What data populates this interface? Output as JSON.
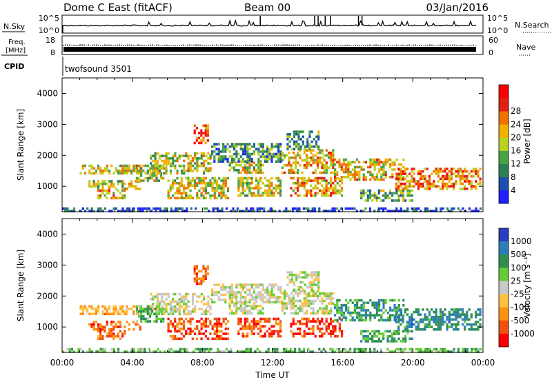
{
  "header": {
    "station": "Dome C East (fitACF)",
    "beam": "Beam 00",
    "date": "03/Jan/2016"
  },
  "strip_panels": {
    "nsky": {
      "label": "N.Sky",
      "ytick_top": "10^5",
      "ytick_bottom": "10^0",
      "right_label": "N.Search",
      "right_ytick_top": "10^5",
      "right_ytick_bottom": "10^0"
    },
    "freq": {
      "label_line1": "Freq.",
      "label_line2": "[MHz]",
      "ytick_top": "18",
      "ytick_bottom": "8",
      "right_label": "Nave",
      "right_ytick_top": "60",
      "right_ytick_bottom": "0"
    },
    "cpid": {
      "label": "CPID",
      "value": "twofsound 3501"
    }
  },
  "chart_data": [
    {
      "type": "heatmap",
      "name": "power",
      "ylabel": "Slant Range [km]",
      "xlabel": "",
      "ylim": [
        180,
        4500
      ],
      "xlim_hours": [
        0,
        24
      ],
      "yticks": [
        "1000",
        "2000",
        "3000",
        "4000"
      ],
      "colorbar": {
        "label": "Power [dB]",
        "ticks": [
          "4",
          "8",
          "12",
          "16",
          "20",
          "24",
          "28"
        ],
        "colors": [
          "#1f1fff",
          "#1a4fb0",
          "#2e7f55",
          "#4aa344",
          "#b8d020",
          "#f0b000",
          "#f07000",
          "#e02010",
          "#ff0000"
        ]
      },
      "regions": [
        {
          "t": [
            1.0,
            4.5
          ],
          "r": [
            1400,
            1700
          ],
          "level": 0.55
        },
        {
          "t": [
            1.5,
            4.5
          ],
          "r": [
            900,
            1200
          ],
          "level": 0.5
        },
        {
          "t": [
            2.0,
            3.6
          ],
          "r": [
            600,
            900
          ],
          "level": 0.6
        },
        {
          "t": [
            4.2,
            5.8
          ],
          "r": [
            1200,
            1700
          ],
          "level": 0.5
        },
        {
          "t": [
            5.0,
            8.5
          ],
          "r": [
            1400,
            2100
          ],
          "level": 0.5
        },
        {
          "t": [
            6.0,
            9.5
          ],
          "r": [
            600,
            1300
          ],
          "level": 0.55
        },
        {
          "t": [
            7.5,
            8.3
          ],
          "r": [
            2400,
            3000
          ],
          "level": 0.75
        },
        {
          "t": [
            8.5,
            12.5
          ],
          "r": [
            1800,
            2400
          ],
          "level": 0.3
        },
        {
          "t": [
            9.5,
            11.5
          ],
          "r": [
            1400,
            1800
          ],
          "level": 0.5
        },
        {
          "t": [
            10.0,
            12.5
          ],
          "r": [
            700,
            1300
          ],
          "level": 0.55
        },
        {
          "t": [
            12.5,
            15.5
          ],
          "r": [
            1400,
            2200
          ],
          "level": 0.6
        },
        {
          "t": [
            13.0,
            16.0
          ],
          "r": [
            700,
            1300
          ],
          "level": 0.65
        },
        {
          "t": [
            12.8,
            14.6
          ],
          "r": [
            2200,
            2800
          ],
          "level": 0.35
        },
        {
          "t": [
            15.5,
            19.5
          ],
          "r": [
            1200,
            1900
          ],
          "level": 0.6
        },
        {
          "t": [
            17.0,
            20.0
          ],
          "r": [
            500,
            900
          ],
          "level": 0.4
        },
        {
          "t": [
            19.0,
            23.9
          ],
          "r": [
            900,
            1600
          ],
          "level": 0.7
        },
        {
          "t": [
            0.0,
            23.9
          ],
          "r": [
            180,
            320
          ],
          "level": 0.15
        }
      ]
    },
    {
      "type": "heatmap",
      "name": "velocity",
      "ylabel": "Slant Range [km]",
      "xlabel": "Time UT",
      "ylim": [
        180,
        4500
      ],
      "xlim_hours": [
        0,
        24
      ],
      "xticks": [
        "00:00",
        "04:00",
        "08:00",
        "12:00",
        "16:00",
        "20:00",
        "00:00"
      ],
      "yticks": [
        "1000",
        "2000",
        "3000",
        "4000"
      ],
      "colorbar": {
        "label": "Velocity [m s⁻¹]",
        "ticks": [
          "1000",
          "500",
          "100",
          "25",
          "-25",
          "-100",
          "-500",
          "-1000"
        ],
        "colors": [
          "#2840c0",
          "#2a7fb8",
          "#2e8f50",
          "#66cc33",
          "#c8c8c8",
          "#ffc040",
          "#ff9010",
          "#f05010",
          "#ff0000"
        ]
      },
      "regions": [
        {
          "t": [
            1.0,
            4.5
          ],
          "r": [
            1400,
            1700
          ],
          "level": -0.35
        },
        {
          "t": [
            1.5,
            4.5
          ],
          "r": [
            900,
            1200
          ],
          "level": -0.6
        },
        {
          "t": [
            2.0,
            3.6
          ],
          "r": [
            600,
            900
          ],
          "level": -0.55
        },
        {
          "t": [
            4.2,
            5.8
          ],
          "r": [
            1200,
            1700
          ],
          "level": 0.3
        },
        {
          "t": [
            5.0,
            8.5
          ],
          "r": [
            1400,
            2100
          ],
          "level": 0.0
        },
        {
          "t": [
            6.0,
            9.5
          ],
          "r": [
            600,
            1300
          ],
          "level": -0.7
        },
        {
          "t": [
            7.5,
            8.3
          ],
          "r": [
            2400,
            3000
          ],
          "level": -0.6
        },
        {
          "t": [
            8.5,
            12.5
          ],
          "r": [
            1800,
            2400
          ],
          "level": 0.0
        },
        {
          "t": [
            9.5,
            11.5
          ],
          "r": [
            1400,
            1800
          ],
          "level": 0.0
        },
        {
          "t": [
            10.0,
            12.5
          ],
          "r": [
            700,
            1300
          ],
          "level": -0.7
        },
        {
          "t": [
            12.5,
            15.5
          ],
          "r": [
            1400,
            2200
          ],
          "level": 0.0
        },
        {
          "t": [
            13.0,
            16.0
          ],
          "r": [
            700,
            1300
          ],
          "level": -0.75
        },
        {
          "t": [
            12.8,
            14.6
          ],
          "r": [
            2200,
            2800
          ],
          "level": 0.0
        },
        {
          "t": [
            15.5,
            19.5
          ],
          "r": [
            1200,
            1900
          ],
          "level": 0.45
        },
        {
          "t": [
            17.0,
            20.0
          ],
          "r": [
            500,
            900
          ],
          "level": 0.35
        },
        {
          "t": [
            19.0,
            23.9
          ],
          "r": [
            900,
            1600
          ],
          "level": 0.55
        },
        {
          "t": [
            0.0,
            23.9
          ],
          "r": [
            180,
            320
          ],
          "level": 0.3
        }
      ]
    }
  ]
}
